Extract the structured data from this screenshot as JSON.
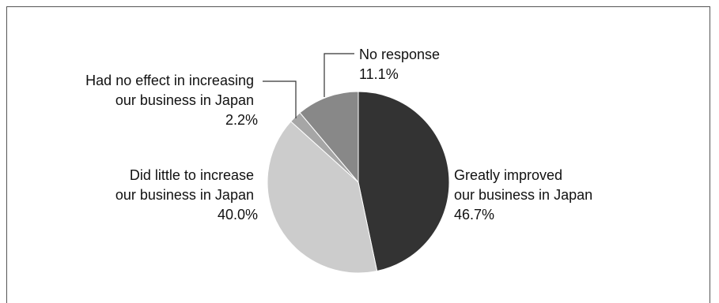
{
  "chart_data": {
    "type": "pie",
    "title": "",
    "start_angle_deg": 0,
    "direction": "clockwise",
    "slices": [
      {
        "label_lines": [
          "Greatly improved",
          "our business in Japan"
        ],
        "value": 46.7,
        "value_text": "46.7%",
        "color": "#333333"
      },
      {
        "label_lines": [
          "Did little to increase",
          "our business in Japan"
        ],
        "value": 40.0,
        "value_text": "40.0%",
        "color": "#cccccc"
      },
      {
        "label_lines": [
          "Had no effect in increasing",
          "our business in Japan"
        ],
        "value": 2.2,
        "value_text": "2.2%",
        "color": "#a6a6a6"
      },
      {
        "label_lines": [
          "No response"
        ],
        "value": 11.1,
        "value_text": "11.1%",
        "color": "#888888"
      }
    ]
  }
}
